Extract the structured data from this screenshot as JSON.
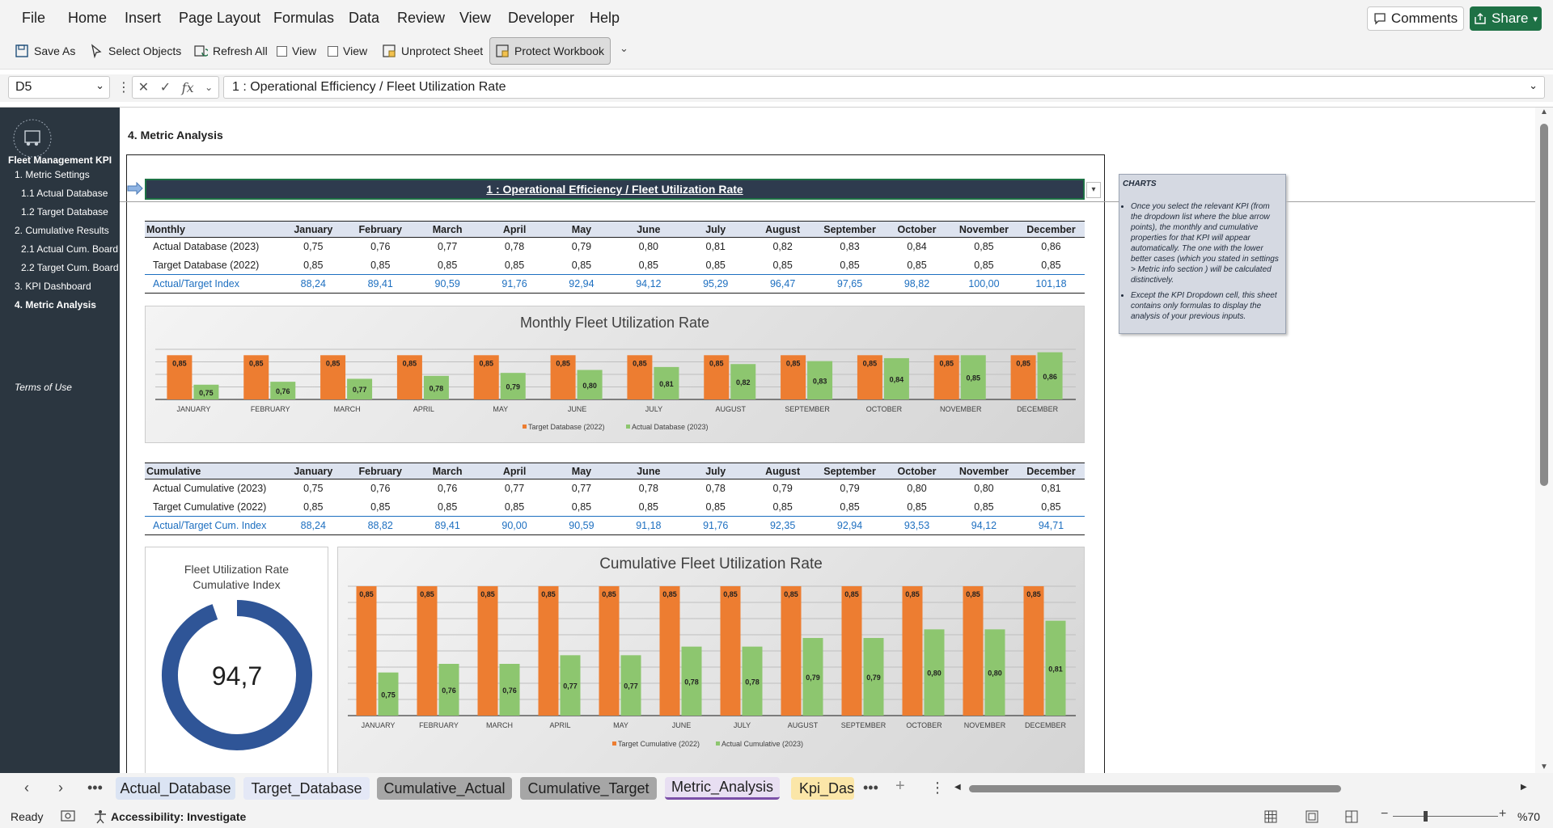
{
  "menu": [
    "File",
    "Home",
    "Insert",
    "Page Layout",
    "Formulas",
    "Data",
    "Review",
    "View",
    "Developer",
    "Help"
  ],
  "comments_label": "Comments",
  "share_label": "Share",
  "toolbar": {
    "save_as": "Save As",
    "select_objects": "Select Objects",
    "refresh_all": "Refresh All",
    "view1": "View",
    "view2": "View",
    "unprotect_sheet": "Unprotect Sheet",
    "protect_workbook": "Protect Workbook"
  },
  "formula_bar": {
    "name_box": "D5",
    "fx": "fx",
    "formula": "1 : Operational Efficiency / Fleet Utilization Rate"
  },
  "sidebar": {
    "title": "Fleet Management KPI",
    "items": [
      {
        "label": "1. Metric Settings"
      },
      {
        "label": "1.1 Actual Database"
      },
      {
        "label": "1.2 Target Database"
      },
      {
        "label": "2. Cumulative Results"
      },
      {
        "label": "2.1 Actual Cum. Board"
      },
      {
        "label": "2.2 Target Cum. Board"
      },
      {
        "label": "3. KPI Dashboard"
      },
      {
        "label": "4. Metric Analysis"
      }
    ],
    "terms": "Terms of Use"
  },
  "section_title": "4. Metric Analysis",
  "kpi_header": "1 : Operational Efficiency / Fleet Utilization Rate",
  "monthly_table": {
    "headers": [
      "Monthly",
      "January",
      "February",
      "March",
      "April",
      "May",
      "June",
      "July",
      "August",
      "September",
      "October",
      "November",
      "December"
    ],
    "rows": [
      {
        "label": "Actual Database (2023)",
        "values": [
          "0,75",
          "0,76",
          "0,77",
          "0,78",
          "0,79",
          "0,80",
          "0,81",
          "0,82",
          "0,83",
          "0,84",
          "0,85",
          "0,86"
        ]
      },
      {
        "label": "Target Database (2022)",
        "values": [
          "0,85",
          "0,85",
          "0,85",
          "0,85",
          "0,85",
          "0,85",
          "0,85",
          "0,85",
          "0,85",
          "0,85",
          "0,85",
          "0,85"
        ]
      },
      {
        "label": "Actual/Target Index",
        "values": [
          "88,24",
          "89,41",
          "90,59",
          "91,76",
          "92,94",
          "94,12",
          "95,29",
          "96,47",
          "97,65",
          "98,82",
          "100,00",
          "101,18"
        ]
      }
    ]
  },
  "cumulative_table": {
    "headers": [
      "Cumulative",
      "January",
      "February",
      "March",
      "April",
      "May",
      "June",
      "July",
      "August",
      "September",
      "October",
      "November",
      "December"
    ],
    "rows": [
      {
        "label": "Actual Cumulative (2023)",
        "values": [
          "0,75",
          "0,76",
          "0,76",
          "0,77",
          "0,77",
          "0,78",
          "0,78",
          "0,79",
          "0,79",
          "0,80",
          "0,80",
          "0,81"
        ]
      },
      {
        "label": "Target Cumulative (2022)",
        "values": [
          "0,85",
          "0,85",
          "0,85",
          "0,85",
          "0,85",
          "0,85",
          "0,85",
          "0,85",
          "0,85",
          "0,85",
          "0,85",
          "0,85"
        ]
      },
      {
        "label": "Actual/Target Cum. Index",
        "values": [
          "88,24",
          "88,82",
          "89,41",
          "90,00",
          "90,59",
          "91,18",
          "91,76",
          "92,35",
          "92,94",
          "93,53",
          "94,12",
          "94,71"
        ]
      }
    ]
  },
  "chart_data": [
    {
      "type": "bar",
      "title": "Monthly Fleet Utilization Rate",
      "categories": [
        "JANUARY",
        "FEBRUARY",
        "MARCH",
        "APRIL",
        "MAY",
        "JUNE",
        "JULY",
        "AUGUST",
        "SEPTEMBER",
        "OCTOBER",
        "NOVEMBER",
        "DECEMBER"
      ],
      "series": [
        {
          "name": "Target Database (2022)",
          "color": "#ed7d31",
          "values": [
            0.85,
            0.85,
            0.85,
            0.85,
            0.85,
            0.85,
            0.85,
            0.85,
            0.85,
            0.85,
            0.85,
            0.85
          ],
          "labels": [
            "0,85",
            "0,85",
            "0,85",
            "0,85",
            "0,85",
            "0,85",
            "0,85",
            "0,85",
            "0,85",
            "0,85",
            "0,85",
            "0,85"
          ]
        },
        {
          "name": "Actual Database (2023)",
          "color": "#8dc66f",
          "values": [
            0.75,
            0.76,
            0.77,
            0.78,
            0.79,
            0.8,
            0.81,
            0.82,
            0.83,
            0.84,
            0.85,
            0.86
          ],
          "labels": [
            "0,75",
            "0,76",
            "0,77",
            "0,78",
            "0,79",
            "0,80",
            "0,81",
            "0,82",
            "0,83",
            "0,84",
            "0,85",
            "0,86"
          ]
        }
      ],
      "ylim": [
        0.7,
        0.87
      ],
      "legend": "bottom",
      "grid": true
    },
    {
      "type": "bar",
      "title": "Cumulative Fleet Utilization Rate",
      "categories": [
        "JANUARY",
        "FEBRUARY",
        "MARCH",
        "APRIL",
        "MAY",
        "JUNE",
        "JULY",
        "AUGUST",
        "SEPTEMBER",
        "OCTOBER",
        "NOVEMBER",
        "DECEMBER"
      ],
      "series": [
        {
          "name": "Target Cumulative (2022)",
          "color": "#ed7d31",
          "values": [
            0.85,
            0.85,
            0.85,
            0.85,
            0.85,
            0.85,
            0.85,
            0.85,
            0.85,
            0.85,
            0.85,
            0.85
          ],
          "labels": [
            "0,85",
            "0,85",
            "0,85",
            "0,85",
            "0,85",
            "0,85",
            "0,85",
            "0,85",
            "0,85",
            "0,85",
            "0,85",
            "0,85"
          ]
        },
        {
          "name": "Actual Cumulative (2023)",
          "color": "#8dc66f",
          "values": [
            0.75,
            0.76,
            0.76,
            0.77,
            0.77,
            0.78,
            0.78,
            0.79,
            0.79,
            0.8,
            0.8,
            0.81
          ],
          "labels": [
            "0,75",
            "0,76",
            "0,76",
            "0,77",
            "0,77",
            "0,78",
            "0,78",
            "0,79",
            "0,79",
            "0,80",
            "0,80",
            "0,81"
          ]
        }
      ],
      "ylim": [
        0.7,
        0.85
      ],
      "legend": "bottom",
      "grid": true
    },
    {
      "type": "pie",
      "title": "Fleet Utilization Rate Cumulative Index",
      "value": 94.7,
      "max": 100,
      "label": "94,7",
      "color": "#2f5597"
    }
  ],
  "charts_note": {
    "title": "CHARTS",
    "items": [
      "Once you select the relevant KPI (from the dropdown list where the blue arrow points), the monthly and cumulative properties for that KPI will appear automatically. The one with the lower better cases (which you stated in settings > Metric info section ) will be calculated distinctively.",
      "Except the KPI Dropdown cell, this sheet contains only formulas to display the analysis of your previous inputs."
    ]
  },
  "gauge_title_line1": "Fleet Utilization Rate",
  "gauge_title_line2": "Cumulative Index",
  "sheet_tabs": [
    {
      "label": "Actual_Database",
      "bg": "#dbe4f3"
    },
    {
      "label": "Target_Database",
      "bg": "#e4e8f6"
    },
    {
      "label": "Cumulative_Actual",
      "bg": "#a6a6a6"
    },
    {
      "label": "Cumulative_Target",
      "bg": "#a6a6a6"
    },
    {
      "label": "Metric_Analysis",
      "bg": "#e8dff2"
    },
    {
      "label": "Kpi_Dash",
      "bg": "#fbe6a8"
    }
  ],
  "status": {
    "ready": "Ready",
    "accessibility": "Accessibility: Investigate",
    "zoom": "%70"
  }
}
